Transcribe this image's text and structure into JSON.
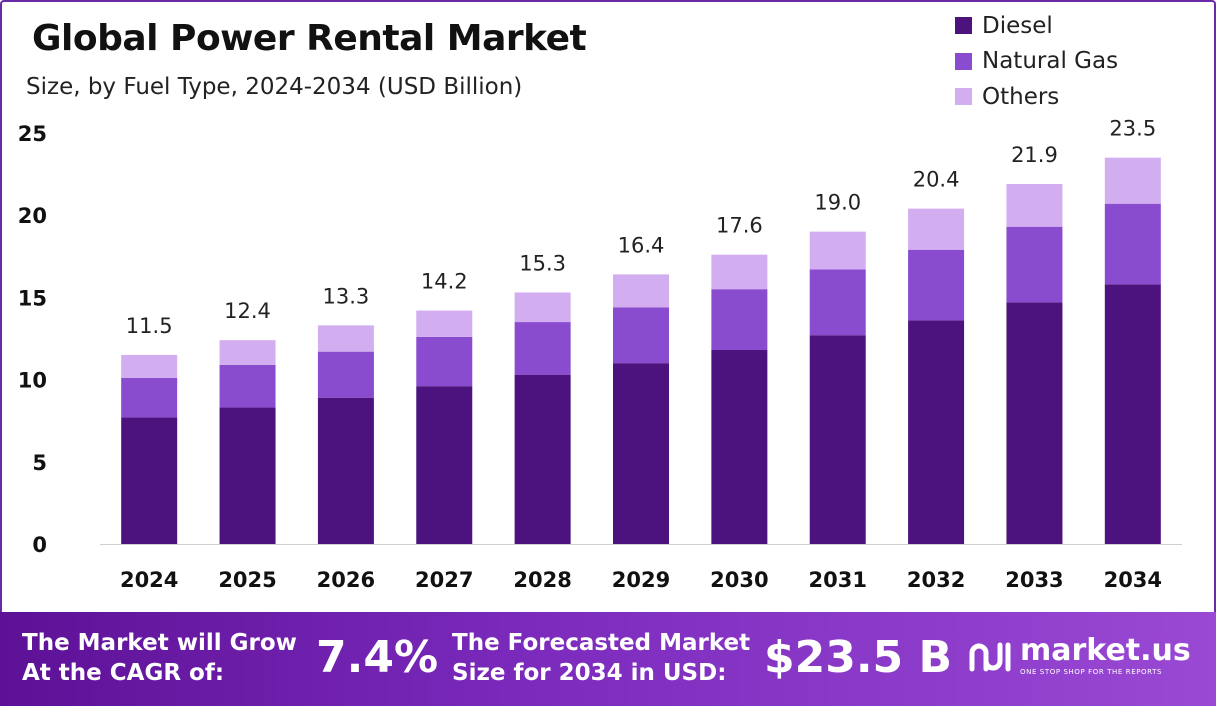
{
  "header": {
    "title": "Global Power Rental Market",
    "subtitle": "Size, by  Fuel Type, 2024-2034 (USD Billion)"
  },
  "colors": {
    "diesel": "#4c137e",
    "natural_gas": "#8a4ccf",
    "others": "#d2aef0",
    "footer_gradient_start": "#5d1196",
    "footer_gradient_end": "#9a49d4"
  },
  "chart_data": {
    "type": "bar",
    "stacked": true,
    "title": "Global Power Rental Market",
    "subtitle": "Size, by  Fuel Type, 2024-2034 (USD Billion)",
    "xlabel": "",
    "ylabel": "",
    "ylim": [
      0,
      25
    ],
    "yticks": [
      "0",
      "5",
      "10",
      "15",
      "20",
      "25"
    ],
    "grid": false,
    "legend_position": "top-right",
    "categories": [
      "2024",
      "2025",
      "2026",
      "2027",
      "2028",
      "2029",
      "2030",
      "2031",
      "2032",
      "2033",
      "2034"
    ],
    "series": [
      {
        "name": "Diesel",
        "values": [
          7.7,
          8.3,
          8.9,
          9.6,
          10.3,
          11.0,
          11.8,
          12.7,
          13.6,
          14.7,
          15.8
        ]
      },
      {
        "name": "Natural Gas",
        "values": [
          2.4,
          2.6,
          2.8,
          3.0,
          3.2,
          3.4,
          3.7,
          4.0,
          4.3,
          4.6,
          4.9
        ]
      },
      {
        "name": "Others",
        "values": [
          1.4,
          1.5,
          1.6,
          1.6,
          1.8,
          2.0,
          2.1,
          2.3,
          2.5,
          2.6,
          2.8
        ]
      }
    ],
    "totals": [
      "11.5",
      "12.4",
      "13.3",
      "14.2",
      "15.3",
      "16.4",
      "17.6",
      "19.0",
      "20.4",
      "21.9",
      "23.5"
    ]
  },
  "footer": {
    "cagr_label_line1": "The Market will Grow",
    "cagr_label_line2": "At the CAGR of:",
    "cagr_value": "7.4%",
    "size_label_line1": "The Forecasted Market",
    "size_label_line2": "Size for 2034 in USD:",
    "size_value": "$23.5 B"
  },
  "brand": {
    "icon": "market-us-logo-icon",
    "name": "market.us",
    "tagline": "ONE STOP SHOP FOR THE REPORTS"
  }
}
